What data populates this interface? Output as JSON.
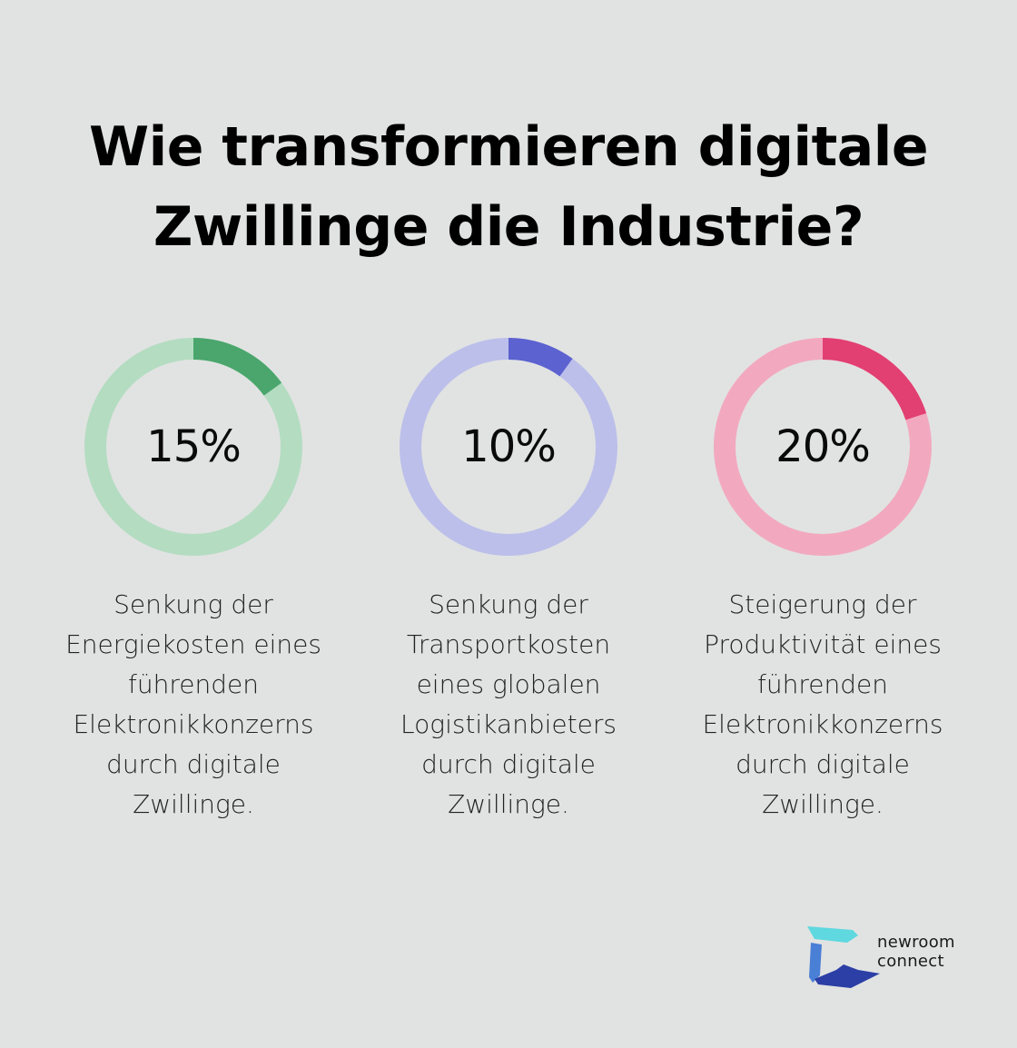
{
  "title": {
    "line1": "Wie transformieren digitale",
    "line2": "Zwillinge die Industrie?"
  },
  "chart_data": {
    "type": "pie",
    "charts": [
      {
        "value": 15,
        "label": "15%",
        "color": "#4aa66c",
        "track_color": "#b4dcc1",
        "description": [
          "Senkung der",
          "Energiekosten eines",
          "führenden",
          "Elektronikkonzerns",
          "durch digitale",
          "Zwillinge."
        ]
      },
      {
        "value": 10,
        "label": "10%",
        "color": "#5c62d0",
        "track_color": "#bcbfea",
        "description": [
          "Senkung der",
          "Transportkosten",
          "eines globalen",
          "Logistikanbieters",
          "durch digitale",
          "Zwillinge."
        ]
      },
      {
        "value": 20,
        "label": "20%",
        "color": "#e23f72",
        "track_color": "#f2a9c0",
        "description": [
          "Steigerung der",
          "Produktivität eines",
          "führenden",
          "Elektronikkonzerns",
          "durch digitale",
          "Zwillinge."
        ]
      }
    ]
  },
  "logo": {
    "line1": "newroom",
    "line2": "connect",
    "colors": [
      "#5fd8df",
      "#4a7fd6",
      "#2b3fa6"
    ]
  }
}
